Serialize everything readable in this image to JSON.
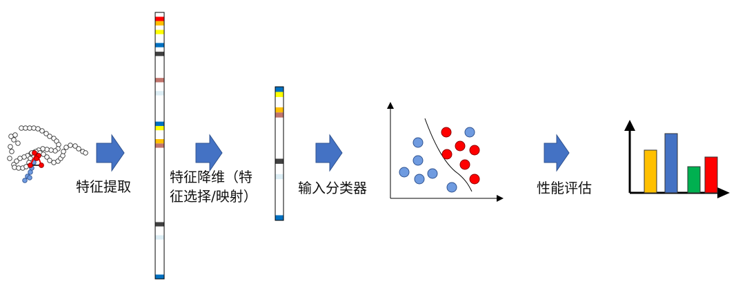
{
  "steps": {
    "extract": "特征提取",
    "reduce_line1": "特征降维（特",
    "reduce_line2": "征选择/映射）",
    "classifier": "输入分类器",
    "evaluate": "性能评估"
  },
  "icons": {
    "molecule": "protein-chain-icon",
    "arrow": "right-arrow-icon",
    "feature_vector": "feature-vector-icon",
    "scatter": "scatter-plot-icon",
    "bar_chart": "bar-chart-icon"
  },
  "colors": {
    "arrow": "#4472c4",
    "red": "#ff0000",
    "orange": "#ffc000",
    "yellow": "#ffff00",
    "blue": "#0070c0",
    "dark": "#404040",
    "rose": "#c0746c",
    "light_blue": "#ddeef5",
    "point_blue": "#6f9be0",
    "green": "#00b050"
  },
  "long_vector_cells": [
    "white",
    "red",
    "orange",
    "white",
    "yellow",
    "white",
    "white",
    "blue",
    "white",
    "dark",
    "white",
    "white",
    "white",
    "white",
    "white",
    "rose",
    "white",
    "white",
    "light_blue",
    "white",
    "white",
    "white",
    "white",
    "white",
    "white",
    "blue",
    "yellow",
    "white",
    "white",
    "orange",
    "rose",
    "white",
    "white",
    "white",
    "white",
    "white",
    "white",
    "white",
    "white",
    "white",
    "white",
    "white",
    "white",
    "white",
    "white",
    "white",
    "white",
    "white",
    "dark",
    "white",
    "white",
    "light_blue",
    "white",
    "white",
    "white",
    "white",
    "white",
    "white",
    "white",
    "white",
    "blue"
  ],
  "short_vector_cells": [
    "blue",
    "yellow",
    "white",
    "white",
    "orange",
    "rose",
    "white",
    "white",
    "white",
    "white",
    "white",
    "white",
    "white",
    "white",
    "dark",
    "white",
    "white",
    "light_blue",
    "white",
    "white",
    "white",
    "white",
    "white",
    "white",
    "white",
    "blue"
  ],
  "chart_data": {
    "type": "bar",
    "categories": [
      "",
      "",
      "",
      ""
    ],
    "values": [
      62,
      86,
      38,
      52
    ],
    "colors": [
      "#ffc000",
      "#4472c4",
      "#00b050",
      "#ff0000"
    ],
    "ylim": [
      0,
      100
    ]
  }
}
